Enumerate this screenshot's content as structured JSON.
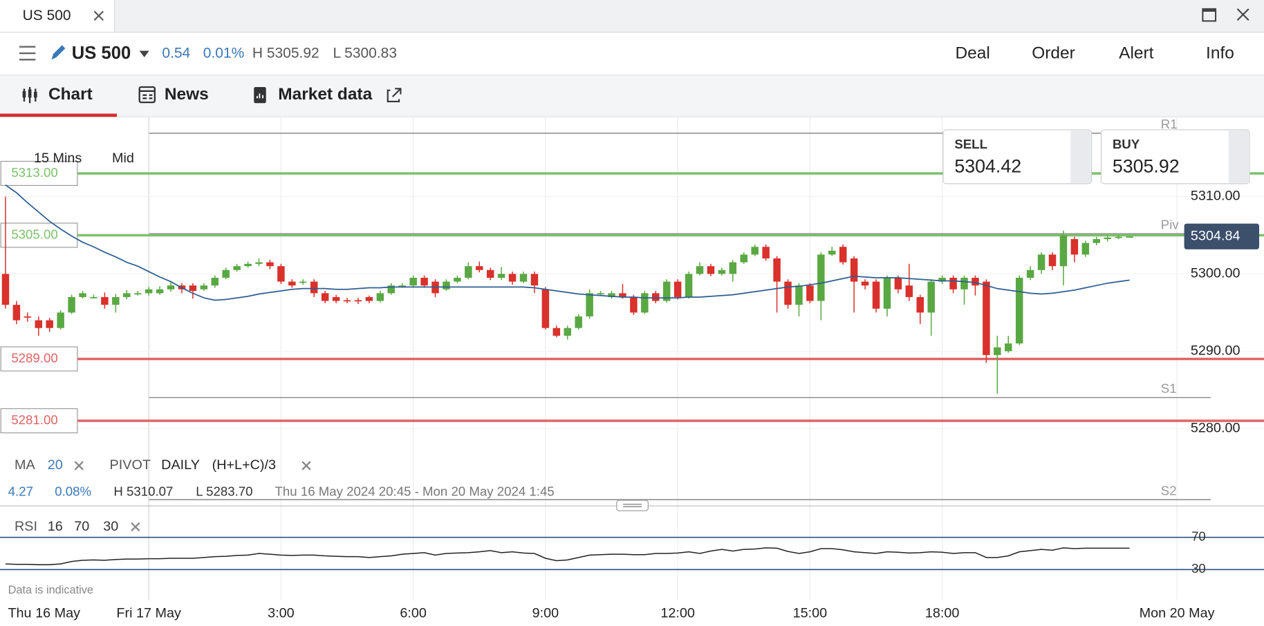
{
  "tab": {
    "title": "US 500"
  },
  "header": {
    "instrument": "US 500",
    "change": "0.54",
    "change_pct": "0.01%",
    "high": "H 5305.92",
    "low": "L 5300.83",
    "actions": [
      "Deal",
      "Order",
      "Alert",
      "Info"
    ]
  },
  "nav": [
    "Chart",
    "News",
    "Market data"
  ],
  "toolbar": {
    "interval": "15 Mins",
    "price_type": "Mid"
  },
  "sell": {
    "label": "SELL",
    "price": "5304.42"
  },
  "buy": {
    "label": "BUY",
    "price": "5305.92"
  },
  "legend": {
    "ma": "MA",
    "ma_period": "20",
    "pivot": "PIVOT",
    "pivot_period": "DAILY",
    "pivot_formula": "(H+L+C)/3"
  },
  "stats": {
    "change": "4.27",
    "change_pct": "0.08%",
    "high": "H 5310.07",
    "low": "L 5283.70",
    "range": "Thu 16 May 2024 20:45 - Mon 20 May 2024 1:45"
  },
  "footer": "Data is indicative",
  "chart_data": {
    "type": "candlestick",
    "xlim": [
      -0.5,
      114.2
    ],
    "xticks": [
      {
        "value": 0,
        "label": "Thu 16 May"
      },
      {
        "value": 13,
        "label": "Fri 17 May"
      },
      {
        "value": 25,
        "label": "3:00"
      },
      {
        "value": 37,
        "label": "6:00"
      },
      {
        "value": 49,
        "label": "9:00"
      },
      {
        "value": 61,
        "label": "12:00"
      },
      {
        "value": 73,
        "label": "15:00"
      },
      {
        "value": 85,
        "label": "18:00"
      },
      {
        "value": 106.3,
        "label": "Mon 20 May"
      }
    ],
    "ylim": [
      5270.3,
      5320
    ],
    "yticks": [
      {
        "value": 5310,
        "label": "5310.00"
      },
      {
        "value": 5300,
        "label": "5300.00"
      },
      {
        "value": 5290,
        "label": "5290.00"
      },
      {
        "value": 5280,
        "label": "5280.00"
      }
    ],
    "grid": true,
    "up_color": "#5aa843",
    "down_color": "#d9312b",
    "open": [
      5300,
      5296,
      5294.5,
      5294,
      5294,
      5293,
      5295,
      5297,
      5297,
      5297,
      5296,
      5297,
      5297.5,
      5297.5,
      5297.5,
      5298,
      5298.5,
      5298.5,
      5298,
      5298.5,
      5299.5,
      5300.5,
      5301,
      5301.3,
      5301.5,
      5301,
      5299,
      5299,
      5299,
      5297.5,
      5297,
      5296.6,
      5296.6,
      5297,
      5296.5,
      5297.5,
      5298.5,
      5298.5,
      5299.5,
      5299,
      5298,
      5299,
      5299.5,
      5301,
      5300.5,
      5299.5,
      5300,
      5299,
      5300,
      5298,
      5293,
      5292,
      5293,
      5294.5,
      5297.5,
      5297,
      5297.5,
      5297,
      5295,
      5297.5,
      5296.5,
      5299,
      5297,
      5300,
      5301,
      5300,
      5300,
      5301.5,
      5302.5,
      5303.5,
      5302,
      5299,
      5296,
      5298.5,
      5296.5,
      5302.5,
      5303.5,
      5302,
      5299,
      5299,
      5295.5,
      5299.5,
      5298.5,
      5297,
      5295,
      5299,
      5299.5,
      5298,
      5299.5,
      5299,
      5289.5,
      5290,
      5291,
      5299.5,
      5300.5,
      5302.5,
      5301,
      5304.5,
      5302.5,
      5304,
      5304.5,
      5304.7,
      5304.8
    ],
    "high": [
      5310,
      5296.5,
      5295,
      5294.5,
      5294.3,
      5295.3,
      5297.3,
      5297.8,
      5297.3,
      5297.6,
      5297.4,
      5297.9,
      5297.8,
      5298.3,
      5298.4,
      5298.9,
      5298.8,
      5298.8,
      5298.8,
      5299.8,
      5300.8,
      5301.3,
      5301.6,
      5302,
      5301.8,
      5301.3,
      5299.3,
      5299.3,
      5299.3,
      5297.8,
      5297.3,
      5296.9,
      5296.9,
      5297.2,
      5297.8,
      5298.8,
      5298.8,
      5299.8,
      5299.8,
      5299.3,
      5299.3,
      5299.8,
      5301.5,
      5301.6,
      5300.8,
      5300.9,
      5300.3,
      5300.3,
      5300.3,
      5298.3,
      5293.3,
      5293.3,
      5294.8,
      5298,
      5297.8,
      5297.8,
      5298.7,
      5297.3,
      5297.8,
      5297.8,
      5299.3,
      5299.3,
      5300.3,
      5301.5,
      5301.3,
      5300.8,
      5301.8,
      5302.8,
      5303.8,
      5303.8,
      5302.3,
      5299.3,
      5298.8,
      5298.8,
      5302.8,
      5303.5,
      5303.8,
      5302.3,
      5299.3,
      5299.3,
      5299.8,
      5299.8,
      5301.3,
      5297.3,
      5299.3,
      5299.8,
      5299.8,
      5299.8,
      5299.8,
      5299.3,
      5292,
      5292,
      5299.8,
      5301,
      5302.8,
      5302.8,
      5305.6,
      5304.8,
      5304.3,
      5304.8,
      5305,
      5305,
      5304.9
    ],
    "low": [
      5295.5,
      5293.5,
      5293.8,
      5292,
      5292.5,
      5292.8,
      5294.8,
      5296.8,
      5296.8,
      5295.5,
      5295,
      5296.7,
      5297.2,
      5297.2,
      5297.3,
      5297.7,
      5297.5,
      5296.8,
      5297.8,
      5298.2,
      5299.3,
      5300.3,
      5300.8,
      5301,
      5300.6,
      5298.7,
      5298.2,
      5298.6,
      5297,
      5296.2,
      5296.2,
      5296.2,
      5296.1,
      5296.2,
      5296.3,
      5297.3,
      5298.2,
      5298.2,
      5298.2,
      5297,
      5297.8,
      5298.8,
      5299.3,
      5300.2,
      5299.2,
      5299.2,
      5298.6,
      5298.8,
      5297.5,
      5292.8,
      5291.8,
      5291.5,
      5292.8,
      5294.2,
      5297.2,
      5296.8,
      5296.8,
      5294.7,
      5294.8,
      5296.2,
      5296.3,
      5296.7,
      5296.8,
      5299.8,
      5299.7,
      5299.8,
      5299,
      5301.3,
      5302.3,
      5301.7,
      5295,
      5295.5,
      5294.5,
      5296.2,
      5294,
      5302.3,
      5301.2,
      5295,
      5298,
      5295,
      5294.5,
      5297.5,
      5296.5,
      5293.5,
      5292,
      5298.7,
      5297.5,
      5296,
      5297.2,
      5288.5,
      5284.5,
      5289.8,
      5290.8,
      5299.2,
      5300,
      5300.5,
      5298.5,
      5301.5,
      5302.2,
      5303.7,
      5304.2,
      5304.5,
      5304.7
    ],
    "close": [
      5296,
      5294,
      5294.4,
      5293,
      5293,
      5295,
      5297,
      5297.5,
      5297,
      5296,
      5297,
      5297.5,
      5297.5,
      5298,
      5298,
      5298.5,
      5298,
      5297.8,
      5298.5,
      5299.5,
      5300.5,
      5301,
      5301.3,
      5301.5,
      5301,
      5299,
      5298.5,
      5299,
      5297.5,
      5296.5,
      5296.5,
      5296.5,
      5296.5,
      5296.5,
      5297.5,
      5298.5,
      5298.5,
      5299.5,
      5298.5,
      5297.5,
      5299,
      5299.5,
      5301,
      5300.5,
      5299.5,
      5300,
      5299,
      5300,
      5298.5,
      5293,
      5292,
      5293,
      5294.5,
      5297.5,
      5297.5,
      5297.5,
      5297,
      5295,
      5297.5,
      5296.5,
      5299,
      5297,
      5300,
      5301,
      5300,
      5300.5,
      5301.5,
      5302.5,
      5303.5,
      5302,
      5299,
      5296,
      5298.5,
      5296.5,
      5302.5,
      5303,
      5301.5,
      5299,
      5298.5,
      5295.5,
      5299.5,
      5298,
      5297,
      5295,
      5299,
      5299.5,
      5298,
      5299.5,
      5298.5,
      5289.5,
      5290.5,
      5291,
      5299.5,
      5300.5,
      5302.5,
      5301,
      5305,
      5302.5,
      5304,
      5304.5,
      5304.7,
      5304.8,
      5304.84
    ],
    "ma": {
      "color": "#2d5d91",
      "values": [
        5311.5,
        5310.5,
        5309.2,
        5308,
        5306.8,
        5305.8,
        5304.9,
        5304.1,
        5303.5,
        5302.8,
        5302.2,
        5301.5,
        5301,
        5300.3,
        5299.6,
        5299,
        5298.2,
        5297.5,
        5296.9,
        5296.6,
        5296.7,
        5296.9,
        5297.1,
        5297.4,
        5297.6,
        5297.8,
        5298,
        5298.1,
        5298.1,
        5298.1,
        5298,
        5298,
        5298.1,
        5298.2,
        5298.2,
        5298.3,
        5298.3,
        5298.3,
        5298.3,
        5298.3,
        5298.3,
        5298.3,
        5298.3,
        5298.3,
        5298.3,
        5298.3,
        5298.3,
        5298.3,
        5298.2,
        5298,
        5297.8,
        5297.6,
        5297.4,
        5297.3,
        5297.2,
        5297.1,
        5297,
        5297,
        5296.9,
        5296.9,
        5296.9,
        5296.9,
        5297,
        5297,
        5297.1,
        5297.2,
        5297.3,
        5297.5,
        5297.7,
        5297.9,
        5298.1,
        5298.3,
        5298.4,
        5298.6,
        5298.8,
        5299.1,
        5299.4,
        5299.7,
        5299.6,
        5299.5,
        5299.5,
        5299.5,
        5299.4,
        5299.3,
        5299.2,
        5299.1,
        5299.1,
        5299,
        5298.9,
        5298.5,
        5298.1,
        5297.9,
        5297.7,
        5297.5,
        5297.4,
        5297.5,
        5297.7,
        5297.9,
        5298.2,
        5298.5,
        5298.8,
        5299,
        5299.2
      ]
    },
    "levels": [
      {
        "value": 5313,
        "label": "5313.00",
        "color": "#7cc16b"
      },
      {
        "value": 5305,
        "label": "5305.00",
        "color": "#7cc16b"
      },
      {
        "value": 5289,
        "label": "5289.00",
        "color": "#e06464"
      },
      {
        "value": 5281,
        "label": "5281.00",
        "color": "#e06464"
      }
    ],
    "pivots": [
      {
        "value": 5318.2,
        "label": "R1"
      },
      {
        "value": 5305.2,
        "label": "Piv"
      },
      {
        "value": 5284,
        "label": "S1"
      },
      {
        "value": 5270.8,
        "label": "S2"
      }
    ],
    "last_price": {
      "value": 5304.84,
      "label": "5304.84"
    },
    "rsi": {
      "name": "RSI",
      "period": "16",
      "upper": "70",
      "lower": "30",
      "ylim": [
        -8,
        100
      ],
      "yticks": [
        70,
        30
      ],
      "color": "#222",
      "values": [
        37,
        36.5,
        36.5,
        36,
        36,
        37,
        40,
        41.5,
        42,
        41.5,
        42.5,
        43,
        43,
        43.5,
        43.5,
        44,
        44,
        44,
        45,
        46,
        46.5,
        47.5,
        48,
        50,
        49,
        48,
        47.5,
        48,
        48,
        47,
        46.5,
        46,
        46,
        45,
        46,
        47,
        49,
        50,
        51,
        48,
        50,
        50.5,
        51,
        52,
        53.5,
        51,
        52,
        50.5,
        50,
        44,
        41,
        42,
        45,
        48,
        48.5,
        49,
        49,
        48.5,
        48.5,
        50,
        50,
        50.5,
        52,
        50,
        53,
        55,
        53,
        55,
        55.5,
        57,
        56.5,
        52.5,
        50,
        52,
        56,
        56,
        54.5,
        52,
        51,
        50,
        52,
        51.5,
        50.5,
        51,
        52,
        51.5,
        50,
        51,
        51,
        45,
        45,
        47,
        52,
        53.5,
        55,
        54,
        57,
        56,
        56.5,
        56.5,
        56.5,
        56.5,
        56.5
      ]
    }
  }
}
